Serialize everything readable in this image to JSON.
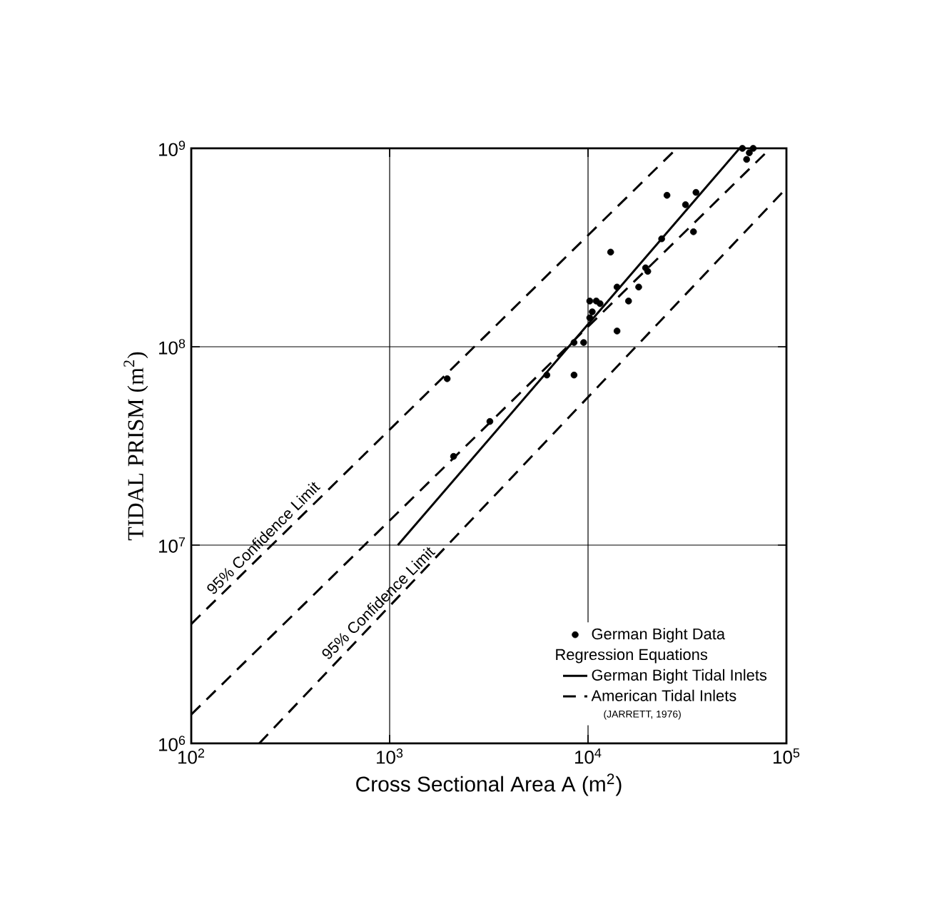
{
  "chart_data": {
    "type": "scatter",
    "xlabel": "Cross Sectional Area A (m$^{2}$)",
    "ylabel": "TIDAL PRISM (m$^{2}$)",
    "legend_title": "Regression Equations",
    "log": "xy",
    "grid": true,
    "legend": "bottom right",
    "xlim": [
      100,
      100000
    ],
    "ylim": [
      1000000,
      1000000000
    ],
    "xticks": [
      {
        "value": 100,
        "label": "10$^{2}$"
      },
      {
        "value": 1000,
        "label": "10$^{3}$"
      },
      {
        "value": 10000,
        "label": "10$^{4}$"
      },
      {
        "value": 100000,
        "label": "10$^{5}$"
      }
    ],
    "yticks": [
      {
        "value": 1000000,
        "label": "10$^{6}$"
      },
      {
        "value": 10000000,
        "label": "10$^{7}$"
      },
      {
        "value": 100000000,
        "label": "10$^{8}$"
      },
      {
        "value": 1000000000,
        "label": "10$^{9}$"
      }
    ],
    "series": [
      {
        "name": "German Bight Data",
        "marker": "circle",
        "color": "#000000",
        "x": [
          1950,
          2100,
          3200,
          6200,
          8500,
          8500,
          9500,
          10200,
          10500,
          10200,
          11000,
          11500,
          13000,
          14000,
          14000,
          16000,
          18000,
          19500,
          20000,
          23500,
          25000,
          31000,
          34000,
          35000,
          60000,
          63000,
          65000,
          68000
        ],
        "values": [
          69000000,
          28000000,
          42000000,
          72000000,
          72000000,
          105000000,
          105000000,
          140000000,
          150000000,
          170000000,
          170000000,
          165000000,
          300000000,
          200000000,
          120000000,
          170000000,
          200000000,
          250000000,
          240000000,
          350000000,
          580000000,
          520000000,
          380000000,
          600000000,
          1000000000,
          880000000,
          950000000,
          1000000000
        ]
      },
      {
        "name": "German Bight Tidal Inlets",
        "type": "line",
        "marker": "none",
        "line_style": "solid",
        "color": "#000000",
        "x": [
          1100,
          58000
        ],
        "values": [
          10000000,
          1000000000
        ]
      },
      {
        "name": "American Tidal Inlets",
        "type": "line",
        "marker": "none",
        "line_style": "dashed",
        "color": "#000000",
        "x": [
          100,
          83000
        ],
        "values": [
          1400000,
          1000000000
        ]
      },
      {
        "type": "line",
        "marker": "none",
        "line_style": "dashed",
        "color": "#000000",
        "x": [
          100,
          28000
        ],
        "values": [
          4000000,
          1000000000
        ]
      },
      {
        "type": "line",
        "marker": "none",
        "line_style": "dashed",
        "color": "#000000",
        "x": [
          220,
          100000
        ],
        "values": [
          1000000,
          630000000
        ]
      }
    ],
    "annotations": [
      {
        "text": "95% Confidence Limit",
        "x": 250,
        "y": 10000000
      },
      {
        "text": "95% Confidence Limit",
        "x": 950,
        "y": 4700000
      },
      "(JARRETT, 1976)"
    ]
  }
}
